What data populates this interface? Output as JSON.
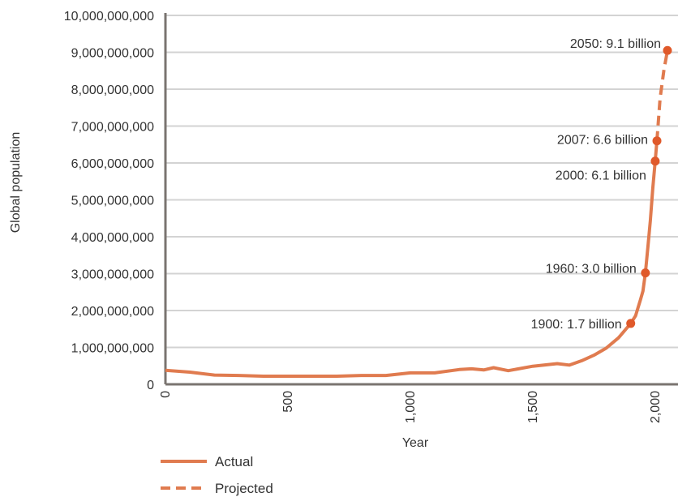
{
  "chart_data": {
    "type": "line",
    "xlabel": "Year",
    "ylabel": "Global population",
    "xlim": [
      0,
      2050
    ],
    "ylim": [
      0,
      10000000000
    ],
    "x_ticks": [
      {
        "value": 0,
        "label": "0"
      },
      {
        "value": 500,
        "label": "500"
      },
      {
        "value": 1000,
        "label": "1,000"
      },
      {
        "value": 1500,
        "label": "1,500"
      },
      {
        "value": 2000,
        "label": "2,000"
      }
    ],
    "y_ticks": [
      {
        "value": 0,
        "label": "0"
      },
      {
        "value": 1000000000,
        "label": "1,000,000,000"
      },
      {
        "value": 2000000000,
        "label": "2,000,000,000"
      },
      {
        "value": 3000000000,
        "label": "3,000,000,000"
      },
      {
        "value": 4000000000,
        "label": "4,000,000,000"
      },
      {
        "value": 5000000000,
        "label": "5,000,000,000"
      },
      {
        "value": 6000000000,
        "label": "6,000,000,000"
      },
      {
        "value": 7000000000,
        "label": "7,000,000,000"
      },
      {
        "value": 8000000000,
        "label": "8,000,000,000"
      },
      {
        "value": 9000000000,
        "label": "9,000,000,000"
      },
      {
        "value": 10000000000,
        "label": "10,000,000,000"
      }
    ],
    "grid": "horizontal",
    "legend_position": "bottom-left",
    "colors": {
      "line": "#e07b4f",
      "marker": "#e0592a",
      "grid": "#d3d3d3",
      "axis": "#7a7470"
    },
    "series": [
      {
        "name": "Actual",
        "style": "solid",
        "points": [
          [
            0,
            380000000
          ],
          [
            100,
            330000000
          ],
          [
            200,
            250000000
          ],
          [
            300,
            240000000
          ],
          [
            400,
            220000000
          ],
          [
            500,
            220000000
          ],
          [
            600,
            220000000
          ],
          [
            700,
            220000000
          ],
          [
            800,
            240000000
          ],
          [
            900,
            240000000
          ],
          [
            1000,
            310000000
          ],
          [
            1100,
            310000000
          ],
          [
            1200,
            400000000
          ],
          [
            1250,
            420000000
          ],
          [
            1300,
            390000000
          ],
          [
            1340,
            450000000
          ],
          [
            1400,
            370000000
          ],
          [
            1500,
            490000000
          ],
          [
            1600,
            560000000
          ],
          [
            1650,
            520000000
          ],
          [
            1700,
            640000000
          ],
          [
            1750,
            790000000
          ],
          [
            1800,
            980000000
          ],
          [
            1850,
            1260000000
          ],
          [
            1900,
            1650000000
          ],
          [
            1920,
            1860000000
          ],
          [
            1940,
            2300000000
          ],
          [
            1950,
            2530000000
          ],
          [
            1960,
            3020000000
          ],
          [
            1970,
            3700000000
          ],
          [
            1980,
            4440000000
          ],
          [
            1990,
            5310000000
          ],
          [
            2000,
            6050000000
          ],
          [
            2007,
            6600000000
          ]
        ]
      },
      {
        "name": "Projected",
        "style": "dashed",
        "points": [
          [
            2007,
            6600000000
          ],
          [
            2020,
            7750000000
          ],
          [
            2035,
            8500000000
          ],
          [
            2050,
            9050000000
          ]
        ]
      }
    ],
    "annotations": [
      {
        "x": 1900,
        "y": 1650000000,
        "label": "1900: 1.7 billion"
      },
      {
        "x": 1960,
        "y": 3020000000,
        "label": "1960: 3.0 billion"
      },
      {
        "x": 2000,
        "y": 6050000000,
        "label": "2000: 6.1 billion"
      },
      {
        "x": 2007,
        "y": 6600000000,
        "label": "2007: 6.6 billion"
      },
      {
        "x": 2050,
        "y": 9050000000,
        "label": "2050: 9.1 billion"
      }
    ]
  }
}
